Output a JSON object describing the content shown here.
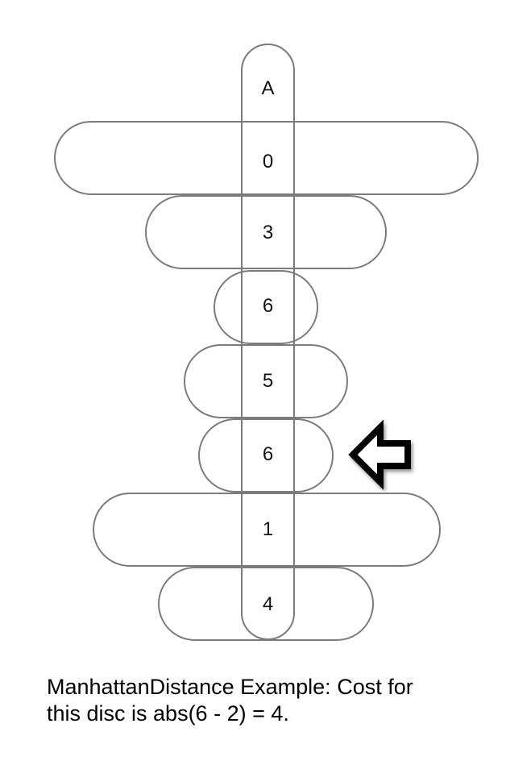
{
  "column_header": "A",
  "discs": [
    {
      "value": "0"
    },
    {
      "value": "3"
    },
    {
      "value": "6"
    },
    {
      "value": "5"
    },
    {
      "value": "6",
      "highlighted": true
    },
    {
      "value": "1"
    },
    {
      "value": "4"
    }
  ],
  "caption": {
    "line1": "ManhattanDistance Example: Cost for",
    "line2": "this disc is abs(6 - 2) = 4."
  },
  "colors": {
    "outline": "#7b7b7b",
    "text": "#111111",
    "arrow": "#000000"
  },
  "icons": {
    "pointer": "left-arrow-icon"
  }
}
